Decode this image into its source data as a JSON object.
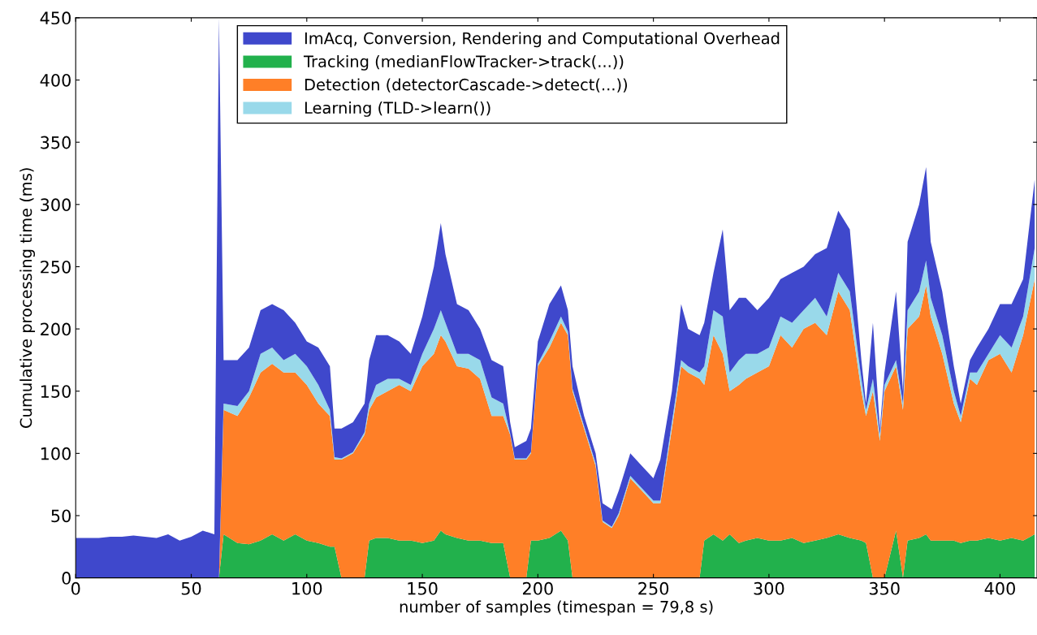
{
  "chart_data": {
    "type": "area",
    "stacked": true,
    "xlabel": "number of samples (timespan = 79,8 s)",
    "ylabel": "Cumulative processing time (ms)",
    "x": [
      0,
      5,
      10,
      15,
      20,
      25,
      30,
      35,
      40,
      45,
      50,
      55,
      60,
      62,
      64,
      70,
      75,
      80,
      85,
      90,
      95,
      100,
      105,
      110,
      112,
      115,
      120,
      125,
      127,
      130,
      135,
      140,
      145,
      150,
      155,
      158,
      160,
      165,
      170,
      175,
      180,
      185,
      188,
      190,
      195,
      197,
      200,
      205,
      210,
      213,
      215,
      220,
      225,
      228,
      232,
      235,
      240,
      245,
      250,
      253,
      258,
      262,
      265,
      270,
      272,
      276,
      280,
      283,
      287,
      290,
      295,
      300,
      305,
      310,
      315,
      320,
      325,
      330,
      335,
      340,
      342,
      345,
      348,
      350,
      355,
      358,
      360,
      365,
      368,
      370,
      375,
      380,
      383,
      387,
      390,
      395,
      400,
      405,
      410,
      415
    ],
    "series": [
      {
        "name": "Tracking (medianFlowTracker->track(...))",
        "color": "#22b14c",
        "values": [
          0,
          0,
          0,
          0,
          0,
          0,
          0,
          0,
          0,
          0,
          0,
          0,
          0,
          0,
          35,
          28,
          27,
          30,
          35,
          30,
          35,
          30,
          28,
          25,
          25,
          0,
          0,
          0,
          30,
          32,
          32,
          30,
          30,
          28,
          30,
          38,
          35,
          32,
          30,
          30,
          28,
          28,
          0,
          0,
          0,
          30,
          30,
          32,
          38,
          30,
          0,
          0,
          0,
          0,
          0,
          0,
          0,
          0,
          0,
          0,
          0,
          0,
          0,
          0,
          30,
          35,
          30,
          35,
          28,
          30,
          32,
          30,
          30,
          32,
          28,
          30,
          32,
          35,
          32,
          30,
          28,
          0,
          0,
          0,
          38,
          0,
          30,
          32,
          35,
          30,
          30,
          30,
          28,
          30,
          30,
          32,
          30,
          32,
          30,
          35
        ]
      },
      {
        "name": "Detection (detectorCascade->detect(...))",
        "color": "#ff7f27",
        "values": [
          0,
          0,
          0,
          0,
          0,
          0,
          0,
          0,
          0,
          0,
          0,
          0,
          0,
          0,
          100,
          102,
          118,
          135,
          137,
          135,
          130,
          125,
          112,
          105,
          70,
          95,
          100,
          115,
          105,
          113,
          118,
          125,
          120,
          142,
          150,
          157,
          155,
          138,
          138,
          130,
          102,
          102,
          115,
          95,
          95,
          70,
          140,
          153,
          167,
          165,
          150,
          120,
          90,
          45,
          40,
          50,
          80,
          70,
          60,
          60,
          120,
          170,
          165,
          160,
          125,
          160,
          150,
          115,
          127,
          130,
          133,
          140,
          165,
          153,
          172,
          175,
          163,
          195,
          183,
          120,
          102,
          150,
          110,
          150,
          132,
          135,
          170,
          178,
          200,
          180,
          150,
          110,
          97,
          130,
          125,
          143,
          150,
          133,
          165,
          205
        ]
      },
      {
        "name": "Learning (TLD->learn())",
        "color": "#99d9ea",
        "values": [
          0,
          0,
          0,
          0,
          0,
          0,
          0,
          0,
          0,
          0,
          0,
          0,
          0,
          0,
          5,
          8,
          5,
          15,
          13,
          10,
          15,
          15,
          15,
          5,
          2,
          1,
          1,
          2,
          5,
          10,
          10,
          5,
          5,
          10,
          20,
          20,
          15,
          10,
          12,
          15,
          15,
          10,
          1,
          1,
          1,
          1,
          2,
          5,
          5,
          3,
          2,
          2,
          2,
          1,
          1,
          2,
          2,
          2,
          2,
          2,
          5,
          5,
          5,
          5,
          15,
          20,
          30,
          15,
          20,
          20,
          15,
          15,
          15,
          20,
          15,
          20,
          15,
          15,
          15,
          10,
          5,
          10,
          5,
          5,
          5,
          5,
          15,
          20,
          20,
          15,
          15,
          10,
          5,
          5,
          10,
          5,
          15,
          20,
          15,
          25
        ]
      },
      {
        "name": "ImAcq, Conversion, Rendering and Computational Overhead",
        "color": "#3f48cc",
        "values": [
          32,
          32,
          32,
          33,
          33,
          34,
          33,
          32,
          35,
          30,
          33,
          38,
          35,
          450,
          35,
          37,
          35,
          35,
          35,
          40,
          25,
          20,
          30,
          35,
          23,
          24,
          24,
          23,
          35,
          40,
          35,
          30,
          25,
          30,
          50,
          70,
          55,
          40,
          35,
          25,
          30,
          30,
          9,
          9,
          14,
          19,
          18,
          30,
          25,
          17,
          18,
          8,
          8,
          14,
          14,
          18,
          18,
          18,
          18,
          33,
          25,
          45,
          30,
          30,
          35,
          30,
          70,
          50,
          50,
          45,
          35,
          40,
          30,
          40,
          35,
          35,
          55,
          50,
          50,
          15,
          5,
          45,
          5,
          10,
          55,
          10,
          55,
          70,
          75,
          45,
          35,
          20,
          10,
          10,
          20,
          20,
          25,
          35,
          30,
          55
        ]
      }
    ],
    "xlim": [
      0,
      416
    ],
    "xticks": [
      0,
      50,
      100,
      150,
      200,
      250,
      300,
      350,
      400
    ],
    "ylim": [
      0,
      450
    ],
    "yticks": [
      0,
      50,
      100,
      150,
      200,
      250,
      300,
      350,
      400,
      450
    ],
    "grid": false,
    "legend": "top left"
  }
}
